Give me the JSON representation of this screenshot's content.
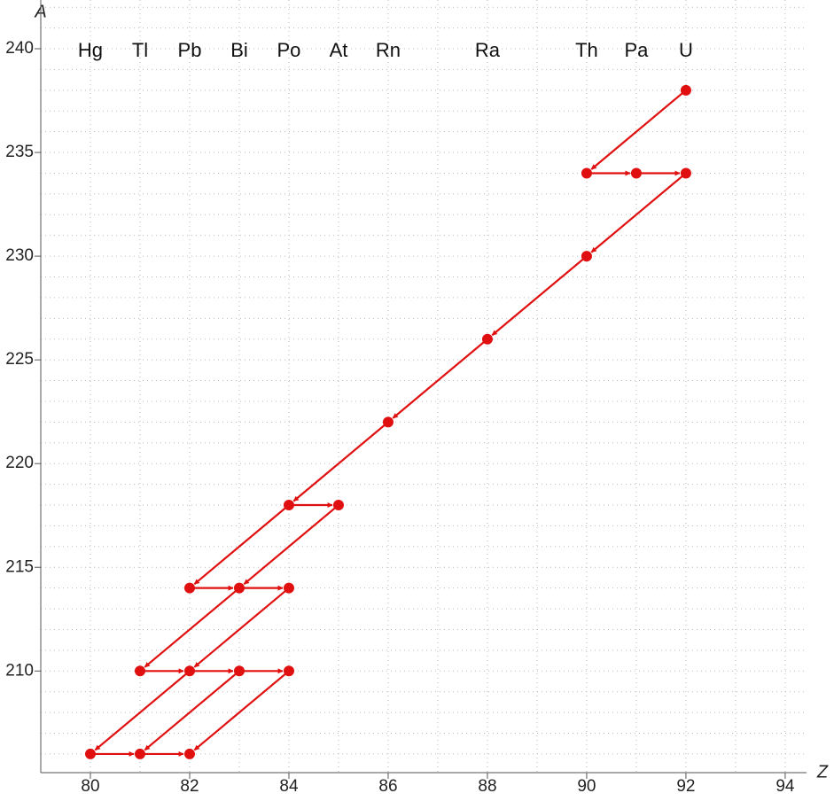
{
  "chart_data": {
    "type": "scatter",
    "x_label": "Z",
    "y_label": "A",
    "xlim": [
      79,
      94.43
    ],
    "ylim": [
      205.1,
      242.35
    ],
    "xticks": [
      80,
      82,
      84,
      86,
      88,
      90,
      92,
      94
    ],
    "yticks": [
      210,
      215,
      220,
      225,
      230,
      235,
      240
    ],
    "grid": "dotted",
    "color": "#e01010",
    "element_labels": {
      "names": [
        "Hg",
        "Tl",
        "Pb",
        "Bi",
        "Po",
        "At",
        "Rn",
        "Ra",
        "Th",
        "Pa",
        "U"
      ],
      "z": [
        80,
        81,
        82,
        83,
        84,
        85,
        86,
        88,
        90,
        91,
        92
      ]
    },
    "x": [
      92,
      90,
      91,
      92,
      90,
      88,
      86,
      84,
      85,
      82,
      83,
      84,
      81,
      82,
      83,
      84,
      80,
      81,
      82
    ],
    "y": [
      238,
      234,
      234,
      234,
      230,
      226,
      222,
      218,
      218,
      214,
      214,
      214,
      210,
      210,
      210,
      210,
      206,
      206,
      206
    ],
    "arrows": [
      {
        "x": [
          92,
          90
        ],
        "y": [
          238,
          234
        ]
      },
      {
        "x": [
          90,
          91
        ],
        "y": [
          234,
          234
        ]
      },
      {
        "x": [
          91,
          92
        ],
        "y": [
          234,
          234
        ]
      },
      {
        "x": [
          92,
          90
        ],
        "y": [
          234,
          230
        ]
      },
      {
        "x": [
          90,
          88
        ],
        "y": [
          230,
          226
        ]
      },
      {
        "x": [
          88,
          86
        ],
        "y": [
          226,
          222
        ]
      },
      {
        "x": [
          86,
          84
        ],
        "y": [
          222,
          218
        ]
      },
      {
        "x": [
          84,
          85
        ],
        "y": [
          218,
          218
        ]
      },
      {
        "x": [
          84,
          82
        ],
        "y": [
          218,
          214
        ]
      },
      {
        "x": [
          85,
          83
        ],
        "y": [
          218,
          214
        ]
      },
      {
        "x": [
          82,
          83
        ],
        "y": [
          214,
          214
        ]
      },
      {
        "x": [
          83,
          84
        ],
        "y": [
          214,
          214
        ]
      },
      {
        "x": [
          83,
          81
        ],
        "y": [
          214,
          210
        ]
      },
      {
        "x": [
          84,
          82
        ],
        "y": [
          214,
          210
        ]
      },
      {
        "x": [
          81,
          82
        ],
        "y": [
          210,
          210
        ]
      },
      {
        "x": [
          82,
          83
        ],
        "y": [
          210,
          210
        ]
      },
      {
        "x": [
          83,
          84
        ],
        "y": [
          210,
          210
        ]
      },
      {
        "x": [
          82,
          80
        ],
        "y": [
          210,
          206
        ]
      },
      {
        "x": [
          83,
          81
        ],
        "y": [
          210,
          206
        ]
      },
      {
        "x": [
          84,
          82
        ],
        "y": [
          210,
          206
        ]
      },
      {
        "x": [
          80,
          81
        ],
        "y": [
          206,
          206
        ]
      },
      {
        "x": [
          81,
          82
        ],
        "y": [
          206,
          206
        ]
      }
    ]
  }
}
